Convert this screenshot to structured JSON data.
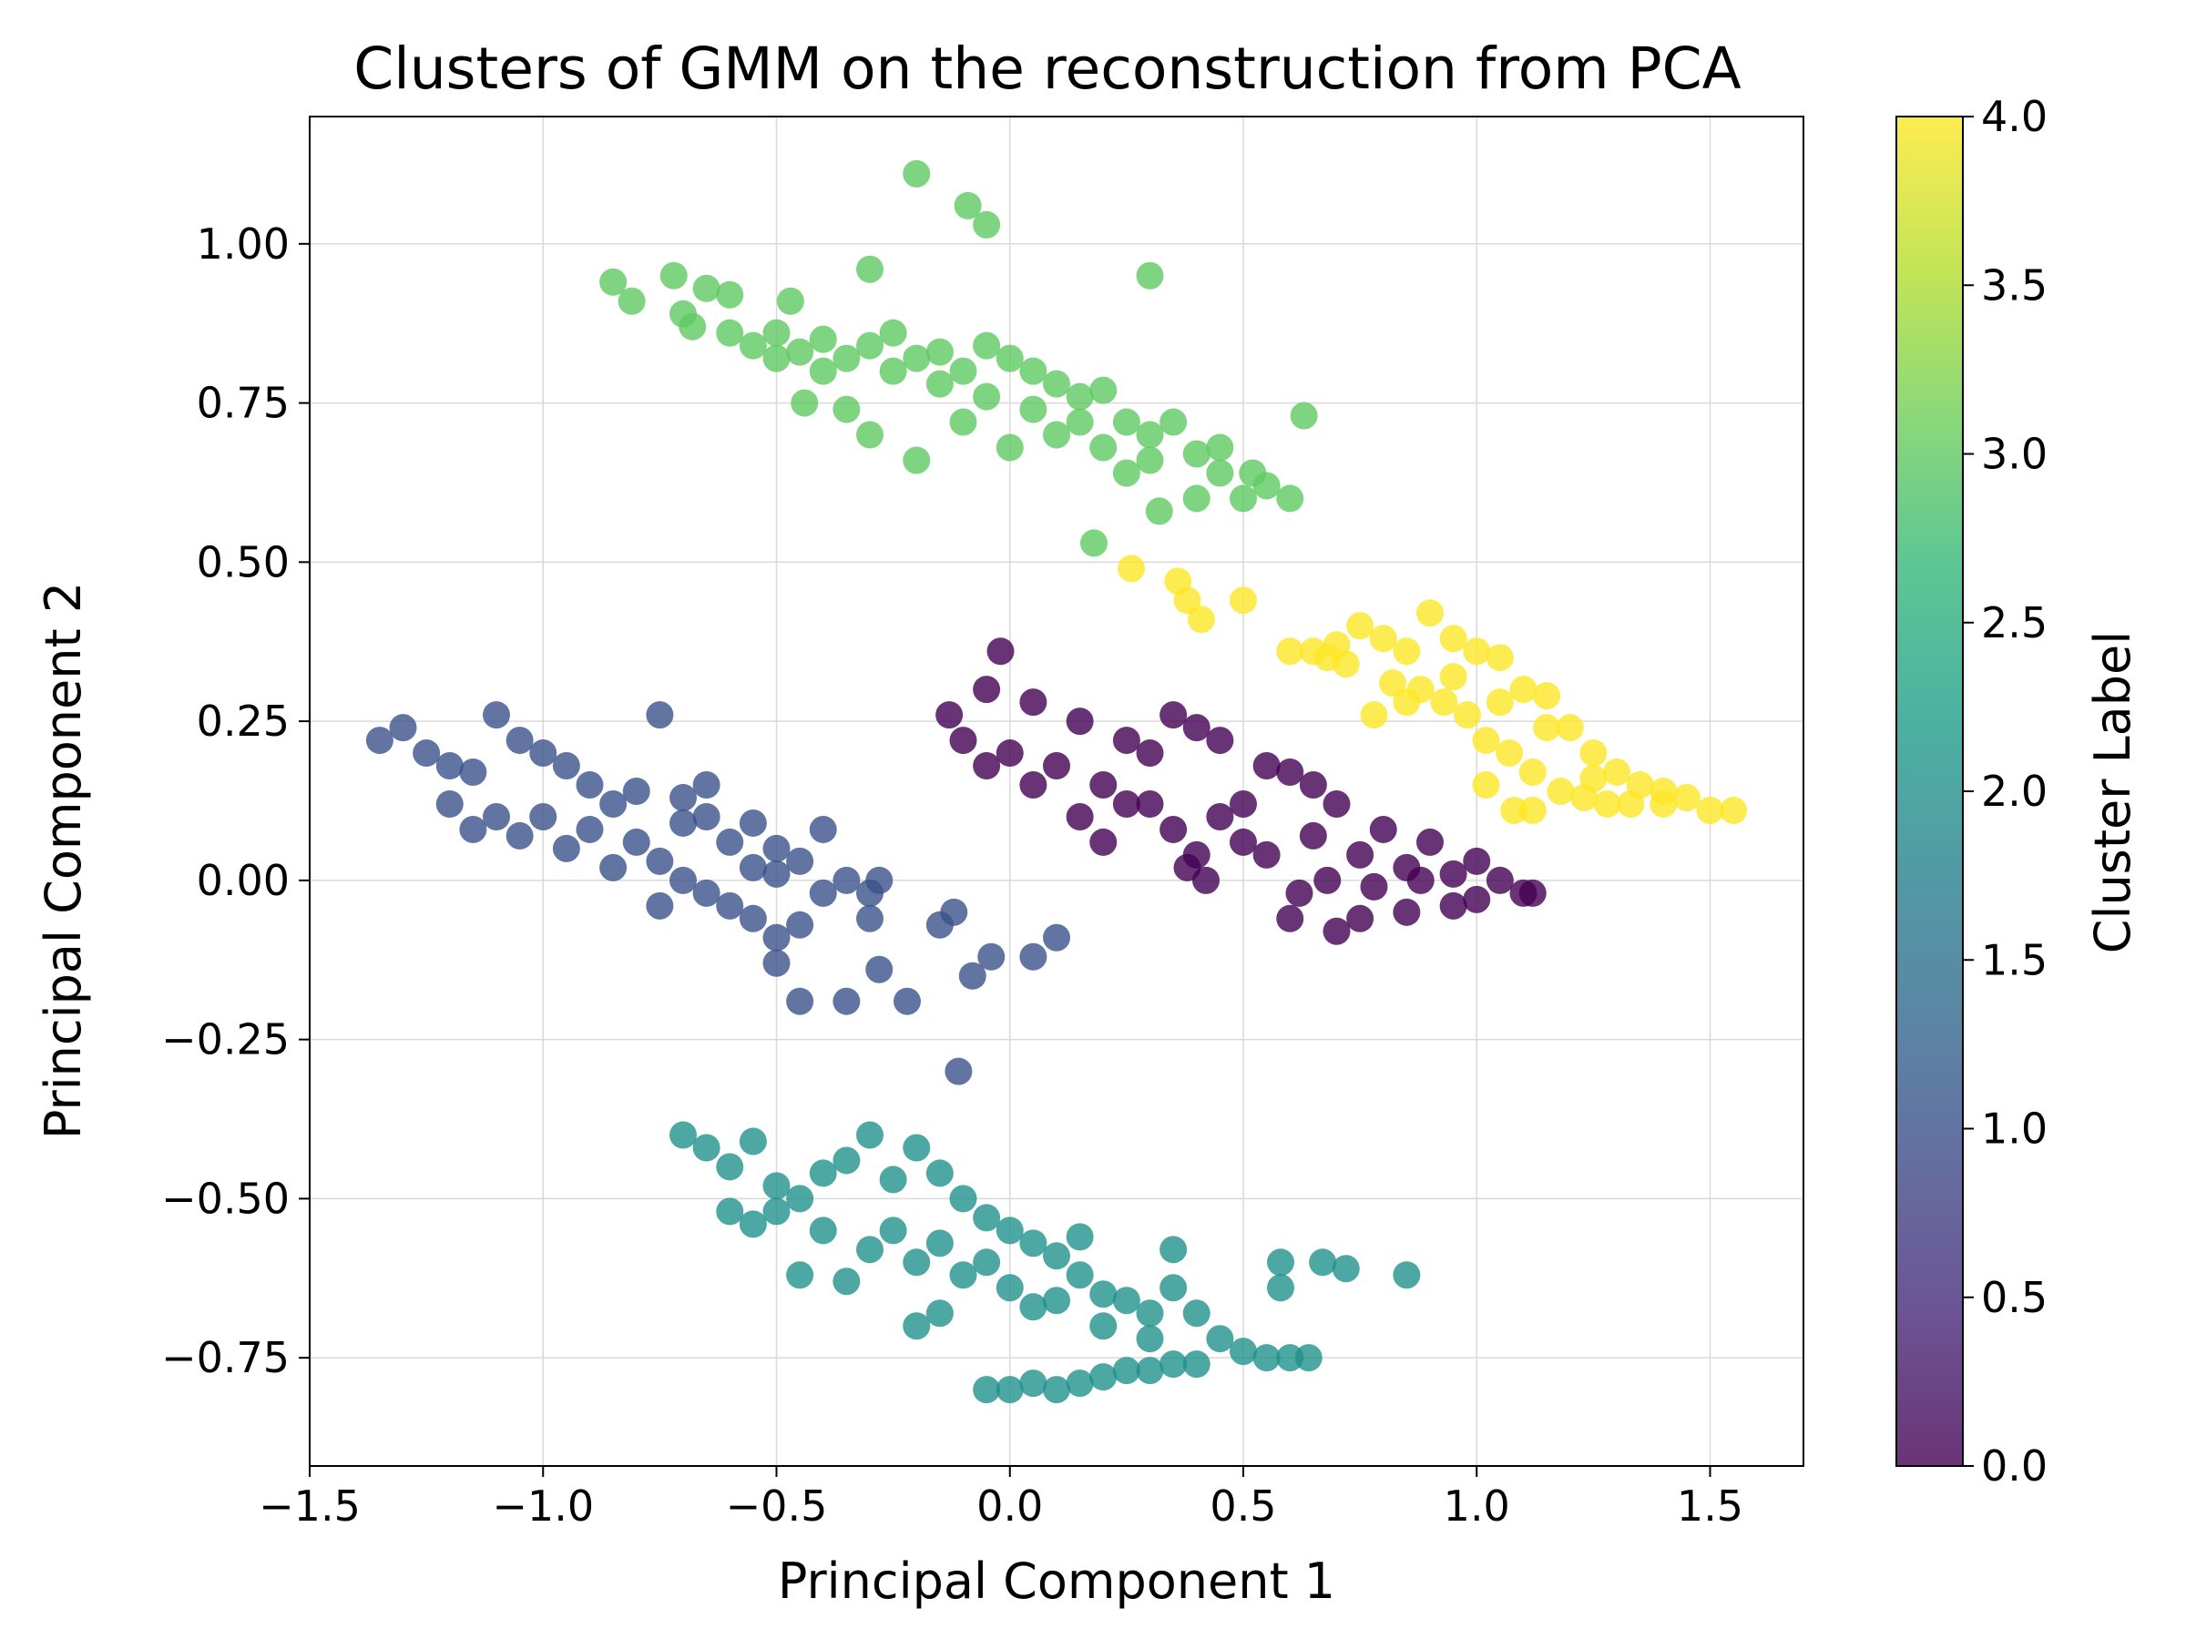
{
  "chart_data": {
    "type": "scatter",
    "title": "Clusters of GMM on the reconstruction from PCA",
    "xlabel": "Principal Component 1",
    "ylabel": "Principal Component 2",
    "xlim": [
      -1.5,
      1.7
    ],
    "ylim": [
      -0.92,
      1.2
    ],
    "xticks": [
      -1.5,
      -1.0,
      -0.5,
      0.0,
      0.5,
      1.0,
      1.5
    ],
    "xtick_labels": [
      "−1.5",
      "−1.0",
      "−0.5",
      "0.0",
      "0.5",
      "1.0",
      "1.5"
    ],
    "yticks": [
      -0.75,
      -0.5,
      -0.25,
      0.0,
      0.25,
      0.5,
      0.75,
      1.0
    ],
    "ytick_labels": [
      "−0.75",
      "−0.50",
      "−0.25",
      "0.00",
      "0.25",
      "0.50",
      "0.75",
      "1.00"
    ],
    "grid": true,
    "colormap": "viridis",
    "alpha": 0.8,
    "colorbar": {
      "label": "Cluster Label",
      "range": [
        0.0,
        4.0
      ],
      "ticks": [
        0.0,
        0.5,
        1.0,
        1.5,
        2.0,
        2.5,
        3.0,
        3.5,
        4.0
      ],
      "tick_labels": [
        "0.0",
        "0.5",
        "1.0",
        "1.5",
        "2.0",
        "2.5",
        "3.0",
        "3.5",
        "4.0"
      ],
      "stops": [
        "#440154",
        "#482878",
        "#3e4989",
        "#31688e",
        "#26828e",
        "#1f9e89",
        "#35b779",
        "#6ece58",
        "#b5de2b",
        "#fde725"
      ]
    },
    "clusters": [
      {
        "label": 0,
        "color": "#440154",
        "points": [
          [
            -0.13,
            0.26
          ],
          [
            -0.05,
            0.3
          ],
          [
            -0.02,
            0.36
          ],
          [
            0.05,
            0.28
          ],
          [
            0.15,
            0.25
          ],
          [
            0.25,
            0.22
          ],
          [
            0.35,
            0.26
          ],
          [
            0.4,
            0.24
          ],
          [
            0.45,
            0.22
          ],
          [
            0.55,
            0.18
          ],
          [
            0.6,
            0.17
          ],
          [
            0.65,
            0.15
          ],
          [
            0.7,
            0.12
          ],
          [
            0.8,
            0.08
          ],
          [
            0.9,
            0.06
          ],
          [
            1.0,
            0.03
          ],
          [
            1.05,
            0.0
          ],
          [
            1.1,
            -0.02
          ],
          [
            1.12,
            -0.02
          ],
          [
            0.6,
            -0.06
          ],
          [
            0.7,
            -0.08
          ],
          [
            0.75,
            -0.06
          ],
          [
            0.85,
            -0.05
          ],
          [
            0.95,
            -0.04
          ],
          [
            -0.1,
            0.22
          ],
          [
            0.0,
            0.2
          ],
          [
            0.1,
            0.18
          ],
          [
            0.2,
            0.15
          ],
          [
            0.3,
            0.12
          ],
          [
            0.35,
            0.08
          ],
          [
            0.4,
            0.04
          ],
          [
            0.5,
            0.06
          ],
          [
            0.55,
            0.04
          ],
          [
            0.45,
            0.1
          ],
          [
            0.15,
            0.1
          ],
          [
            0.2,
            0.06
          ],
          [
            0.25,
            0.12
          ],
          [
            0.05,
            0.15
          ],
          [
            -0.05,
            0.18
          ],
          [
            0.65,
            0.07
          ],
          [
            0.75,
            0.04
          ],
          [
            0.85,
            0.02
          ],
          [
            0.95,
            0.01
          ],
          [
            0.62,
            -0.02
          ],
          [
            0.68,
            0.0
          ],
          [
            0.78,
            -0.01
          ],
          [
            0.88,
            0.0
          ],
          [
            1.0,
            -0.03
          ],
          [
            0.38,
            0.02
          ],
          [
            0.42,
            0.0
          ],
          [
            0.5,
            0.12
          ],
          [
            0.3,
            0.2
          ]
        ]
      },
      {
        "label": 1,
        "color": "#3b528b",
        "points": [
          [
            -1.35,
            0.22
          ],
          [
            -1.3,
            0.24
          ],
          [
            -1.25,
            0.2
          ],
          [
            -1.2,
            0.18
          ],
          [
            -1.15,
            0.17
          ],
          [
            -1.1,
            0.26
          ],
          [
            -1.05,
            0.22
          ],
          [
            -1.0,
            0.2
          ],
          [
            -0.95,
            0.18
          ],
          [
            -0.9,
            0.15
          ],
          [
            -0.85,
            0.12
          ],
          [
            -0.8,
            0.14
          ],
          [
            -0.75,
            0.26
          ],
          [
            -0.7,
            0.13
          ],
          [
            -0.65,
            0.1
          ],
          [
            -0.6,
            0.06
          ],
          [
            -0.55,
            0.09
          ],
          [
            -0.5,
            0.05
          ],
          [
            -0.45,
            0.03
          ],
          [
            -0.4,
            0.08
          ],
          [
            -0.35,
            0.0
          ],
          [
            -0.3,
            -0.02
          ],
          [
            -0.28,
            0.0
          ],
          [
            -0.3,
            -0.06
          ],
          [
            -0.45,
            -0.07
          ],
          [
            -0.5,
            -0.09
          ],
          [
            -0.5,
            -0.13
          ],
          [
            -0.45,
            -0.19
          ],
          [
            -0.35,
            -0.19
          ],
          [
            -0.28,
            -0.14
          ],
          [
            -0.22,
            -0.19
          ],
          [
            -0.15,
            -0.07
          ],
          [
            -0.12,
            -0.05
          ],
          [
            -0.08,
            -0.15
          ],
          [
            -0.04,
            -0.12
          ],
          [
            0.05,
            -0.12
          ],
          [
            0.1,
            -0.09
          ],
          [
            -0.11,
            -0.3
          ],
          [
            -1.2,
            0.12
          ],
          [
            -1.1,
            0.1
          ],
          [
            -1.0,
            0.1
          ],
          [
            -0.9,
            0.08
          ],
          [
            -0.8,
            0.06
          ],
          [
            -0.75,
            0.03
          ],
          [
            -0.7,
            0.0
          ],
          [
            -0.65,
            -0.02
          ],
          [
            -0.6,
            -0.04
          ],
          [
            -0.55,
            -0.06
          ],
          [
            -0.85,
            0.02
          ],
          [
            -0.95,
            0.05
          ],
          [
            -1.05,
            0.07
          ],
          [
            -1.15,
            0.08
          ],
          [
            -0.65,
            0.15
          ],
          [
            -0.55,
            0.02
          ],
          [
            -0.75,
            -0.04
          ],
          [
            -0.7,
            0.09
          ],
          [
            -0.5,
            0.01
          ],
          [
            -0.4,
            -0.02
          ]
        ]
      },
      {
        "label": 2,
        "color": "#21918c",
        "points": [
          [
            -0.7,
            -0.4
          ],
          [
            -0.65,
            -0.42
          ],
          [
            -0.6,
            -0.45
          ],
          [
            -0.55,
            -0.41
          ],
          [
            -0.5,
            -0.48
          ],
          [
            -0.45,
            -0.5
          ],
          [
            -0.4,
            -0.46
          ],
          [
            -0.35,
            -0.44
          ],
          [
            -0.3,
            -0.4
          ],
          [
            -0.25,
            -0.47
          ],
          [
            -0.2,
            -0.42
          ],
          [
            -0.15,
            -0.46
          ],
          [
            -0.1,
            -0.5
          ],
          [
            -0.05,
            -0.53
          ],
          [
            0.0,
            -0.55
          ],
          [
            0.05,
            -0.57
          ],
          [
            0.1,
            -0.59
          ],
          [
            0.15,
            -0.62
          ],
          [
            0.2,
            -0.65
          ],
          [
            0.25,
            -0.66
          ],
          [
            0.3,
            -0.68
          ],
          [
            0.35,
            -0.64
          ],
          [
            0.4,
            -0.68
          ],
          [
            0.45,
            -0.72
          ],
          [
            0.5,
            -0.74
          ],
          [
            0.55,
            -0.75
          ],
          [
            0.6,
            -0.75
          ],
          [
            0.64,
            -0.75
          ],
          [
            0.35,
            -0.58
          ],
          [
            0.58,
            -0.6
          ],
          [
            0.58,
            -0.64
          ],
          [
            0.67,
            -0.6
          ],
          [
            0.72,
            -0.61
          ],
          [
            0.85,
            -0.62
          ],
          [
            -0.05,
            -0.8
          ],
          [
            0.0,
            -0.8
          ],
          [
            0.05,
            -0.79
          ],
          [
            0.1,
            -0.8
          ],
          [
            0.15,
            -0.79
          ],
          [
            0.2,
            -0.78
          ],
          [
            0.25,
            -0.77
          ],
          [
            0.3,
            -0.77
          ],
          [
            0.35,
            -0.76
          ],
          [
            0.4,
            -0.76
          ],
          [
            -0.2,
            -0.7
          ],
          [
            -0.15,
            -0.68
          ],
          [
            -0.35,
            -0.63
          ],
          [
            -0.45,
            -0.62
          ],
          [
            -0.55,
            -0.54
          ],
          [
            -0.6,
            -0.52
          ],
          [
            -0.3,
            -0.58
          ],
          [
            -0.2,
            -0.6
          ],
          [
            -0.1,
            -0.62
          ],
          [
            0.0,
            -0.64
          ],
          [
            0.05,
            -0.67
          ],
          [
            0.15,
            -0.56
          ],
          [
            -0.25,
            -0.55
          ],
          [
            -0.15,
            -0.57
          ],
          [
            -0.05,
            -0.6
          ],
          [
            0.1,
            -0.66
          ],
          [
            0.2,
            -0.7
          ],
          [
            0.3,
            -0.72
          ],
          [
            -0.4,
            -0.55
          ],
          [
            -0.5,
            -0.52
          ]
        ]
      },
      {
        "label": 3,
        "color": "#5ec962",
        "points": [
          [
            -0.2,
            1.11
          ],
          [
            -0.09,
            1.06
          ],
          [
            -0.05,
            1.03
          ],
          [
            0.3,
            0.95
          ],
          [
            -0.3,
            0.96
          ],
          [
            -0.72,
            0.95
          ],
          [
            -0.85,
            0.94
          ],
          [
            -0.81,
            0.91
          ],
          [
            -0.65,
            0.93
          ],
          [
            -0.6,
            0.92
          ],
          [
            -0.47,
            0.91
          ],
          [
            -0.7,
            0.89
          ],
          [
            -0.68,
            0.87
          ],
          [
            -0.6,
            0.86
          ],
          [
            -0.55,
            0.84
          ],
          [
            -0.5,
            0.82
          ],
          [
            -0.45,
            0.83
          ],
          [
            -0.4,
            0.85
          ],
          [
            -0.35,
            0.82
          ],
          [
            -0.3,
            0.84
          ],
          [
            -0.25,
            0.8
          ],
          [
            -0.2,
            0.82
          ],
          [
            -0.15,
            0.83
          ],
          [
            -0.1,
            0.8
          ],
          [
            -0.05,
            0.84
          ],
          [
            0.0,
            0.82
          ],
          [
            0.05,
            0.8
          ],
          [
            0.1,
            0.78
          ],
          [
            0.15,
            0.76
          ],
          [
            0.2,
            0.77
          ],
          [
            0.25,
            0.72
          ],
          [
            0.3,
            0.7
          ],
          [
            0.35,
            0.72
          ],
          [
            0.4,
            0.67
          ],
          [
            0.45,
            0.64
          ],
          [
            0.5,
            0.6
          ],
          [
            0.55,
            0.62
          ],
          [
            0.6,
            0.6
          ],
          [
            0.63,
            0.73
          ],
          [
            0.18,
            0.53
          ],
          [
            0.32,
            0.58
          ],
          [
            -0.2,
            0.66
          ],
          [
            -0.3,
            0.7
          ],
          [
            -0.44,
            0.75
          ],
          [
            -0.35,
            0.74
          ],
          [
            -0.1,
            0.72
          ],
          [
            0.0,
            0.68
          ],
          [
            0.1,
            0.7
          ],
          [
            0.2,
            0.68
          ],
          [
            0.25,
            0.64
          ],
          [
            0.4,
            0.6
          ],
          [
            -0.5,
            0.86
          ],
          [
            -0.4,
            0.8
          ],
          [
            -0.25,
            0.86
          ],
          [
            -0.15,
            0.78
          ],
          [
            -0.05,
            0.76
          ],
          [
            0.05,
            0.74
          ],
          [
            0.15,
            0.72
          ],
          [
            0.3,
            0.66
          ],
          [
            0.45,
            0.68
          ],
          [
            0.52,
            0.64
          ]
        ]
      },
      {
        "label": 4,
        "color": "#fde725",
        "points": [
          [
            0.26,
            0.49
          ],
          [
            0.36,
            0.47
          ],
          [
            0.38,
            0.44
          ],
          [
            0.41,
            0.41
          ],
          [
            0.5,
            0.44
          ],
          [
            0.6,
            0.36
          ],
          [
            0.65,
            0.36
          ],
          [
            0.7,
            0.37
          ],
          [
            0.75,
            0.4
          ],
          [
            0.8,
            0.38
          ],
          [
            0.85,
            0.36
          ],
          [
            0.9,
            0.42
          ],
          [
            0.95,
            0.38
          ],
          [
            1.0,
            0.36
          ],
          [
            1.05,
            0.35
          ],
          [
            1.1,
            0.3
          ],
          [
            1.15,
            0.29
          ],
          [
            1.2,
            0.24
          ],
          [
            1.25,
            0.2
          ],
          [
            1.3,
            0.17
          ],
          [
            1.35,
            0.15
          ],
          [
            1.4,
            0.14
          ],
          [
            1.45,
            0.13
          ],
          [
            1.5,
            0.11
          ],
          [
            1.55,
            0.11
          ],
          [
            0.78,
            0.26
          ],
          [
            0.82,
            0.31
          ],
          [
            0.88,
            0.3
          ],
          [
            0.93,
            0.28
          ],
          [
            0.98,
            0.26
          ],
          [
            1.02,
            0.22
          ],
          [
            1.07,
            0.2
          ],
          [
            1.12,
            0.17
          ],
          [
            1.18,
            0.14
          ],
          [
            1.23,
            0.13
          ],
          [
            1.28,
            0.12
          ],
          [
            1.33,
            0.12
          ],
          [
            1.08,
            0.11
          ],
          [
            1.12,
            0.11
          ],
          [
            1.02,
            0.15
          ],
          [
            0.72,
            0.34
          ],
          [
            0.68,
            0.35
          ],
          [
            1.15,
            0.24
          ],
          [
            1.25,
            0.16
          ],
          [
            1.4,
            0.12
          ],
          [
            0.85,
            0.28
          ],
          [
            0.95,
            0.32
          ],
          [
            1.05,
            0.28
          ]
        ]
      }
    ]
  }
}
